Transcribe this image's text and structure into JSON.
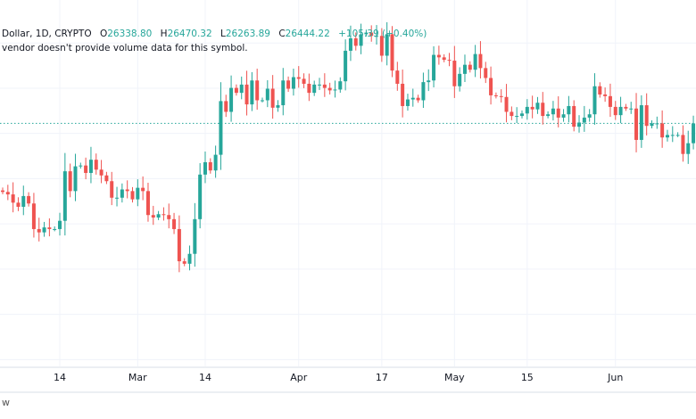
{
  "legend": {
    "symbol": "Dollar, 1D, CRYPTO",
    "open_key": "O",
    "open": "26338.80",
    "high_key": "H",
    "high": "26470.32",
    "low_key": "L",
    "low": "26263.89",
    "close_key": "C",
    "close": "26444.22",
    "change": "+105.39 (+0.40%)"
  },
  "volume_note": "vendor doesn't provide volume data for this symbol.",
  "footer_text": "w",
  "colors": {
    "up": "#26a69a",
    "down": "#ef5350",
    "grid": "#f0f3fa",
    "last_price_line": "#26a69a"
  },
  "chart_data": {
    "type": "candlestick",
    "title": "Dollar, 1D, CRYPTO",
    "xlabel": "",
    "ylabel": "",
    "x_tick_labels": [
      "14",
      "Mar",
      "14",
      "Apr",
      "17",
      "May",
      "15",
      "Jun"
    ],
    "x_tick_day_index": [
      11,
      26,
      39,
      57,
      73,
      87,
      101,
      118
    ],
    "ylim": [
      15700,
      31900
    ],
    "grid": true,
    "last_price": 26444.22,
    "closes": [
      23414,
      23305,
      22940,
      22757,
      23232,
      22903,
      21772,
      21626,
      21845,
      21772,
      21772,
      22137,
      24327,
      23451,
      24546,
      24582,
      24254,
      24838,
      24400,
      24144,
      23889,
      23159,
      23159,
      23524,
      23451,
      23086,
      23597,
      23451,
      22392,
      22283,
      22429,
      22392,
      22210,
      21772,
      20348,
      20239,
      20677,
      22210,
      24181,
      24728,
      24363,
      25057,
      27430,
      26955,
      28014,
      27795,
      28160,
      27284,
      28342,
      27466,
      27466,
      27977,
      27138,
      27247,
      28342,
      27977,
      28488,
      28415,
      28196,
      27795,
      28160,
      28160,
      28014,
      27904,
      27941,
      28306,
      29656,
      30204,
      29875,
      30386,
      30459,
      30313,
      30313,
      29437,
      30386,
      28780,
      28196,
      27211,
      27503,
      27576,
      27466,
      28269,
      28342,
      29474,
      29364,
      29255,
      29218,
      28087,
      28634,
      29036,
      28817,
      29510,
      28890,
      28452,
      27685,
      27649,
      27612,
      26955,
      26773,
      26773,
      26882,
      27174,
      27065,
      27357,
      26773,
      26846,
      27101,
      26700,
      26846,
      27211,
      26298,
      26481,
      26700,
      26846,
      28087,
      27722,
      27649,
      27174,
      26809,
      27174,
      27101,
      27101,
      25714,
      27247,
      26334,
      26444,
      26444,
      25823,
      25933,
      25933,
      25933,
      25093,
      25568,
      26444.22
    ],
    "first_open": 23480
  }
}
